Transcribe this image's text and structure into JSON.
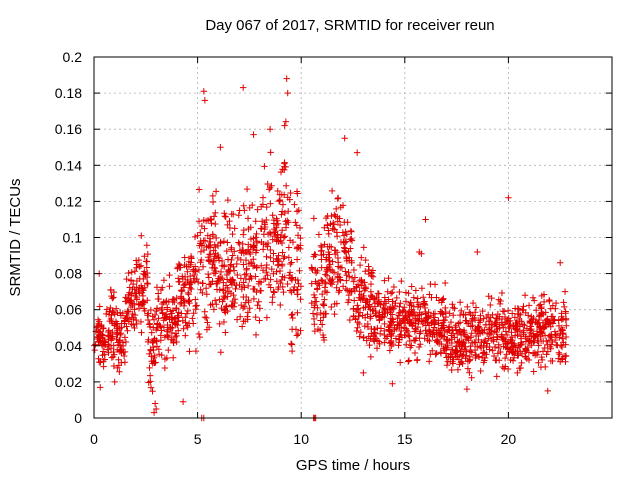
{
  "chart_data": {
    "type": "scatter",
    "title": "Day 067 of 2017, SRMTID for receiver reun",
    "xlabel": "GPS time / hours",
    "ylabel": "SRMTID / TECUs",
    "xlim": [
      0,
      25
    ],
    "ylim": [
      0,
      0.2
    ],
    "x_ticks": [
      "0",
      "5",
      "10",
      "15",
      "20"
    ],
    "x_tick_values": [
      0,
      5,
      10,
      15,
      20
    ],
    "y_ticks": [
      "0",
      "0.02",
      "0.04",
      "0.06",
      "0.08",
      "0.1",
      "0.12",
      "0.14",
      "0.16",
      "0.18",
      "0.2"
    ],
    "y_tick_values": [
      0,
      0.02,
      0.04,
      0.06,
      0.08,
      0.1,
      0.12,
      0.14,
      0.16,
      0.18,
      0.2
    ],
    "grid": true,
    "marker": "plus",
    "color": "#e00000",
    "series": [
      {
        "name": "SRMTID",
        "envelope": [
          {
            "x": [
              0.0,
              0.5
            ],
            "mean": 0.045,
            "spread": 0.012
          },
          {
            "x": [
              0.5,
              1.0
            ],
            "mean": 0.05,
            "spread": 0.015
          },
          {
            "x": [
              1.0,
              1.5
            ],
            "mean": 0.045,
            "spread": 0.012
          },
          {
            "x": [
              1.5,
              2.0
            ],
            "mean": 0.065,
            "spread": 0.014
          },
          {
            "x": [
              2.0,
              2.6
            ],
            "mean": 0.075,
            "spread": 0.016
          },
          {
            "x": [
              2.6,
              3.0
            ],
            "mean": 0.035,
            "spread": 0.02
          },
          {
            "x": [
              3.0,
              4.0
            ],
            "mean": 0.055,
            "spread": 0.016
          },
          {
            "x": [
              4.0,
              5.0
            ],
            "mean": 0.07,
            "spread": 0.02
          },
          {
            "x": [
              5.0,
              6.0
            ],
            "mean": 0.085,
            "spread": 0.028
          },
          {
            "x": [
              6.0,
              7.0
            ],
            "mean": 0.08,
            "spread": 0.025
          },
          {
            "x": [
              7.0,
              8.0
            ],
            "mean": 0.085,
            "spread": 0.028
          },
          {
            "x": [
              8.0,
              9.0
            ],
            "mean": 0.095,
            "spread": 0.03
          },
          {
            "x": [
              9.0,
              9.5
            ],
            "mean": 0.105,
            "spread": 0.035
          },
          {
            "x": [
              9.5,
              10.0
            ],
            "mean": 0.08,
            "spread": 0.03
          },
          {
            "x": [
              10.0,
              10.5
            ],
            "mean": 0.0,
            "spread": 0.0
          },
          {
            "x": [
              10.5,
              11.2
            ],
            "mean": 0.075,
            "spread": 0.025
          },
          {
            "x": [
              11.2,
              12.5
            ],
            "mean": 0.09,
            "spread": 0.025
          },
          {
            "x": [
              12.5,
              13.5
            ],
            "mean": 0.065,
            "spread": 0.02
          },
          {
            "x": [
              13.5,
              15.0
            ],
            "mean": 0.055,
            "spread": 0.014
          },
          {
            "x": [
              15.0,
              17.0
            ],
            "mean": 0.052,
            "spread": 0.014
          },
          {
            "x": [
              17.0,
              19.0
            ],
            "mean": 0.045,
            "spread": 0.013
          },
          {
            "x": [
              19.0,
              21.0
            ],
            "mean": 0.045,
            "spread": 0.014
          },
          {
            "x": [
              21.0,
              22.8
            ],
            "mean": 0.048,
            "spread": 0.014
          }
        ],
        "highlights": [
          {
            "x": 5.3,
            "y": 0.181
          },
          {
            "x": 5.35,
            "y": 0.176
          },
          {
            "x": 7.2,
            "y": 0.183
          },
          {
            "x": 9.3,
            "y": 0.188
          },
          {
            "x": 9.35,
            "y": 0.18
          },
          {
            "x": 8.5,
            "y": 0.16
          },
          {
            "x": 9.2,
            "y": 0.162
          },
          {
            "x": 12.1,
            "y": 0.155
          },
          {
            "x": 12.7,
            "y": 0.147
          },
          {
            "x": 6.1,
            "y": 0.15
          },
          {
            "x": 7.7,
            "y": 0.157
          },
          {
            "x": 20.0,
            "y": 0.122
          },
          {
            "x": 16.0,
            "y": 0.11
          },
          {
            "x": 18.5,
            "y": 0.092
          },
          {
            "x": 22.5,
            "y": 0.086
          },
          {
            "x": 2.9,
            "y": 0.003
          },
          {
            "x": 2.95,
            "y": 0.008
          },
          {
            "x": 3.0,
            "y": 0.005
          },
          {
            "x": 4.3,
            "y": 0.009
          },
          {
            "x": 5.2,
            "y": 0.0
          },
          {
            "x": 5.3,
            "y": 0.0
          },
          {
            "x": 10.6,
            "y": 0.0
          },
          {
            "x": 10.65,
            "y": 0.0
          },
          {
            "x": 10.7,
            "y": 0.0
          },
          {
            "x": 0.25,
            "y": 0.08
          },
          {
            "x": 1.0,
            "y": 0.02
          },
          {
            "x": 0.3,
            "y": 0.017
          },
          {
            "x": 14.4,
            "y": 0.019
          },
          {
            "x": 18.0,
            "y": 0.016
          },
          {
            "x": 21.9,
            "y": 0.015
          },
          {
            "x": 13.0,
            "y": 0.025
          },
          {
            "x": 15.7,
            "y": 0.092
          },
          {
            "x": 15.8,
            "y": 0.091
          }
        ]
      }
    ]
  }
}
